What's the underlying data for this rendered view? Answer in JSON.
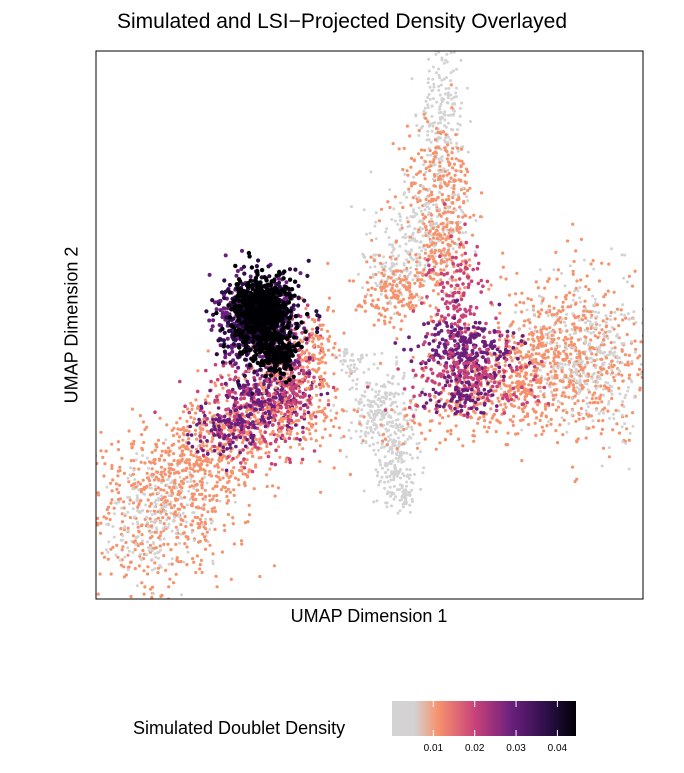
{
  "chart_data": {
    "type": "scatter",
    "title": "Simulated and LSI−Projected Density Overlayed",
    "xlabel": "UMAP Dimension 1",
    "ylabel": "UMAP Dimension 2",
    "grid": false,
    "axis_ticks": false,
    "legend": {
      "position": "bottom",
      "title": "Simulated Doublet Density",
      "ticks": [
        "0.01",
        "0.02",
        "0.03",
        "0.04"
      ],
      "tick_values": [
        0.01,
        0.02,
        0.03,
        0.04
      ],
      "range": [
        0,
        0.0445
      ]
    },
    "colorscale": [
      "#d3d3d3",
      "#f6936d",
      "#c8427a",
      "#6a1f7c",
      "#2a0e45",
      "#000004"
    ],
    "background_color": "#d3d3d3"
  }
}
